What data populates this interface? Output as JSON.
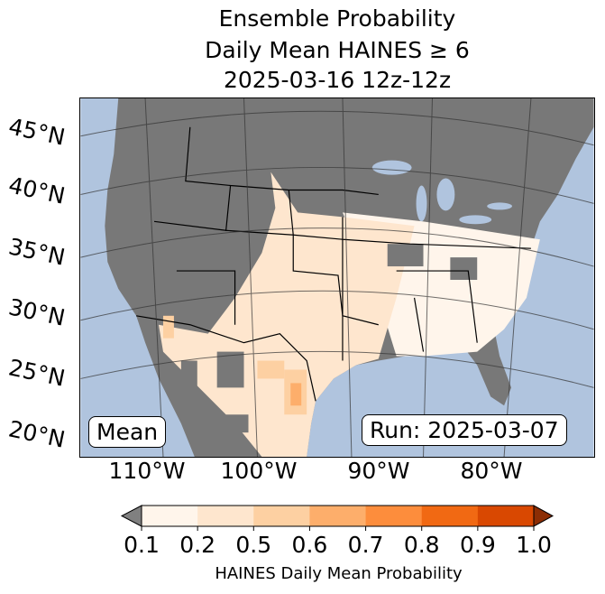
{
  "title": {
    "line1": "Ensemble Probability",
    "line2": "Daily Mean HAINES ≥ 6",
    "line3": "2025-03-16 12z-12z"
  },
  "lat_labels": [
    "45°N",
    "40°N",
    "35°N",
    "30°N",
    "25°N",
    "20°N"
  ],
  "lon_labels": [
    "110°W",
    "100°W",
    "90°W",
    "80°W"
  ],
  "mean_label": "Mean",
  "run_label": "Run: 2025-03-07",
  "colorbar": {
    "ticks": [
      "0.1",
      "0.2",
      "0.5",
      "0.6",
      "0.7",
      "0.8",
      "0.9",
      "1.0"
    ],
    "colors": [
      "#fff5eb",
      "#fee6ce",
      "#fdd0a2",
      "#fdae6b",
      "#fd8d3c",
      "#f16913",
      "#d94801"
    ],
    "under_color": "#808080",
    "over_color": "#8c2d04",
    "label": "HAINES Daily Mean Probability"
  },
  "colors": {
    "water": "#b0c4de",
    "land": "#787878"
  }
}
